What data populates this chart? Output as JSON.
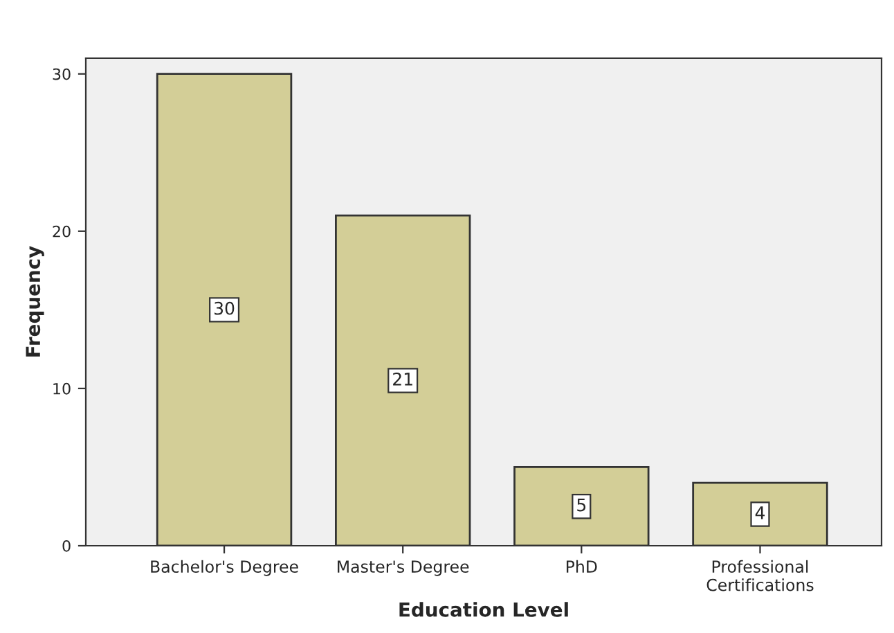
{
  "chart_data": {
    "type": "bar",
    "xlabel": "Education Level",
    "ylabel": "Frequency",
    "categories": [
      "Bachelor's Degree",
      "Master's Degree",
      "PhD",
      "Professional\nCertifications"
    ],
    "values": [
      30,
      21,
      5,
      4
    ],
    "color": "#d3ce97",
    "ylim": [
      0,
      31
    ],
    "yticks": [
      0,
      10,
      20,
      30
    ],
    "grid": false,
    "data_labels": true
  }
}
